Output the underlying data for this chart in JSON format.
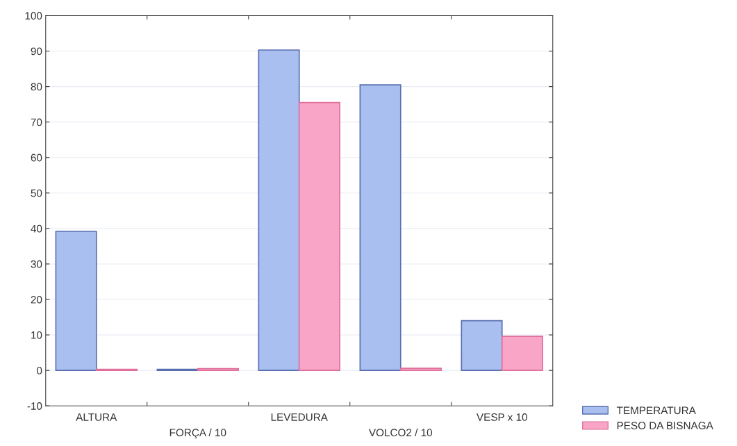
{
  "chart_data": {
    "type": "bar",
    "categories": [
      "ALTURA",
      "FORÇA / 10",
      "LEVEDURA",
      "VOLCO2 / 10",
      "VESP x 10"
    ],
    "series": [
      {
        "name": "TEMPERATURA",
        "color": "#a9bff0",
        "values": [
          39.2,
          0.3,
          90.3,
          80.5,
          14
        ]
      },
      {
        "name": "PESO DA BISNAGA",
        "color": "#f8a5c8",
        "values": [
          0.3,
          0.5,
          75.5,
          0.6,
          9.6
        ]
      }
    ],
    "ylim": [
      -10,
      100
    ],
    "yticks": [
      -10,
      0,
      10,
      20,
      30,
      40,
      50,
      60,
      70,
      80,
      90,
      100
    ],
    "grid": "y",
    "legend": "bottom right"
  }
}
